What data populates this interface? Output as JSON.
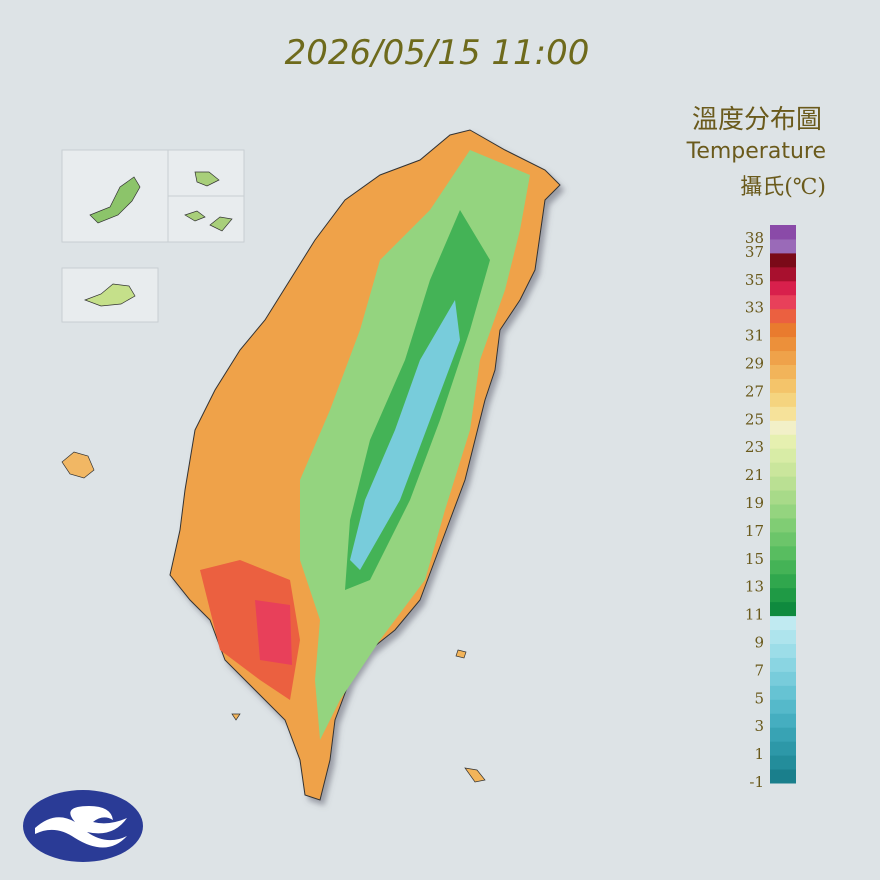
{
  "title": "2026/05/15 11:00",
  "legend": {
    "title": "溫度分布圖",
    "subtitle": "Temperature",
    "unit": "攝氏(℃)",
    "labels": [
      38,
      37,
      35,
      33,
      31,
      29,
      27,
      25,
      23,
      21,
      19,
      17,
      15,
      13,
      11,
      9,
      7,
      5,
      3,
      1,
      -1
    ],
    "colors": [
      "#1a7f8c",
      "#238d9b",
      "#2d98a8",
      "#38a3b4",
      "#45aec0",
      "#55b9ca",
      "#66c3d3",
      "#78ccdb",
      "#8ad5e2",
      "#9cdde8",
      "#aee4ed",
      "#c0eaf1",
      "#0f8a3e",
      "#1f9a45",
      "#30a74d",
      "#44b356",
      "#58bd60",
      "#6cc56a",
      "#80cd74",
      "#94d47f",
      "#a8da89",
      "#bae093",
      "#cae69c",
      "#d8eca6",
      "#e6f0b0",
      "#f2f0c8",
      "#f6e29a",
      "#f5d47f",
      "#f4c46a",
      "#f2b45a",
      "#efa24a",
      "#ec903a",
      "#e97b2e",
      "#eb6040",
      "#e8405a",
      "#d8204c",
      "#a8102e",
      "#7a0a18",
      "#9a6ab8",
      "#8a4aa8"
    ]
  }
}
